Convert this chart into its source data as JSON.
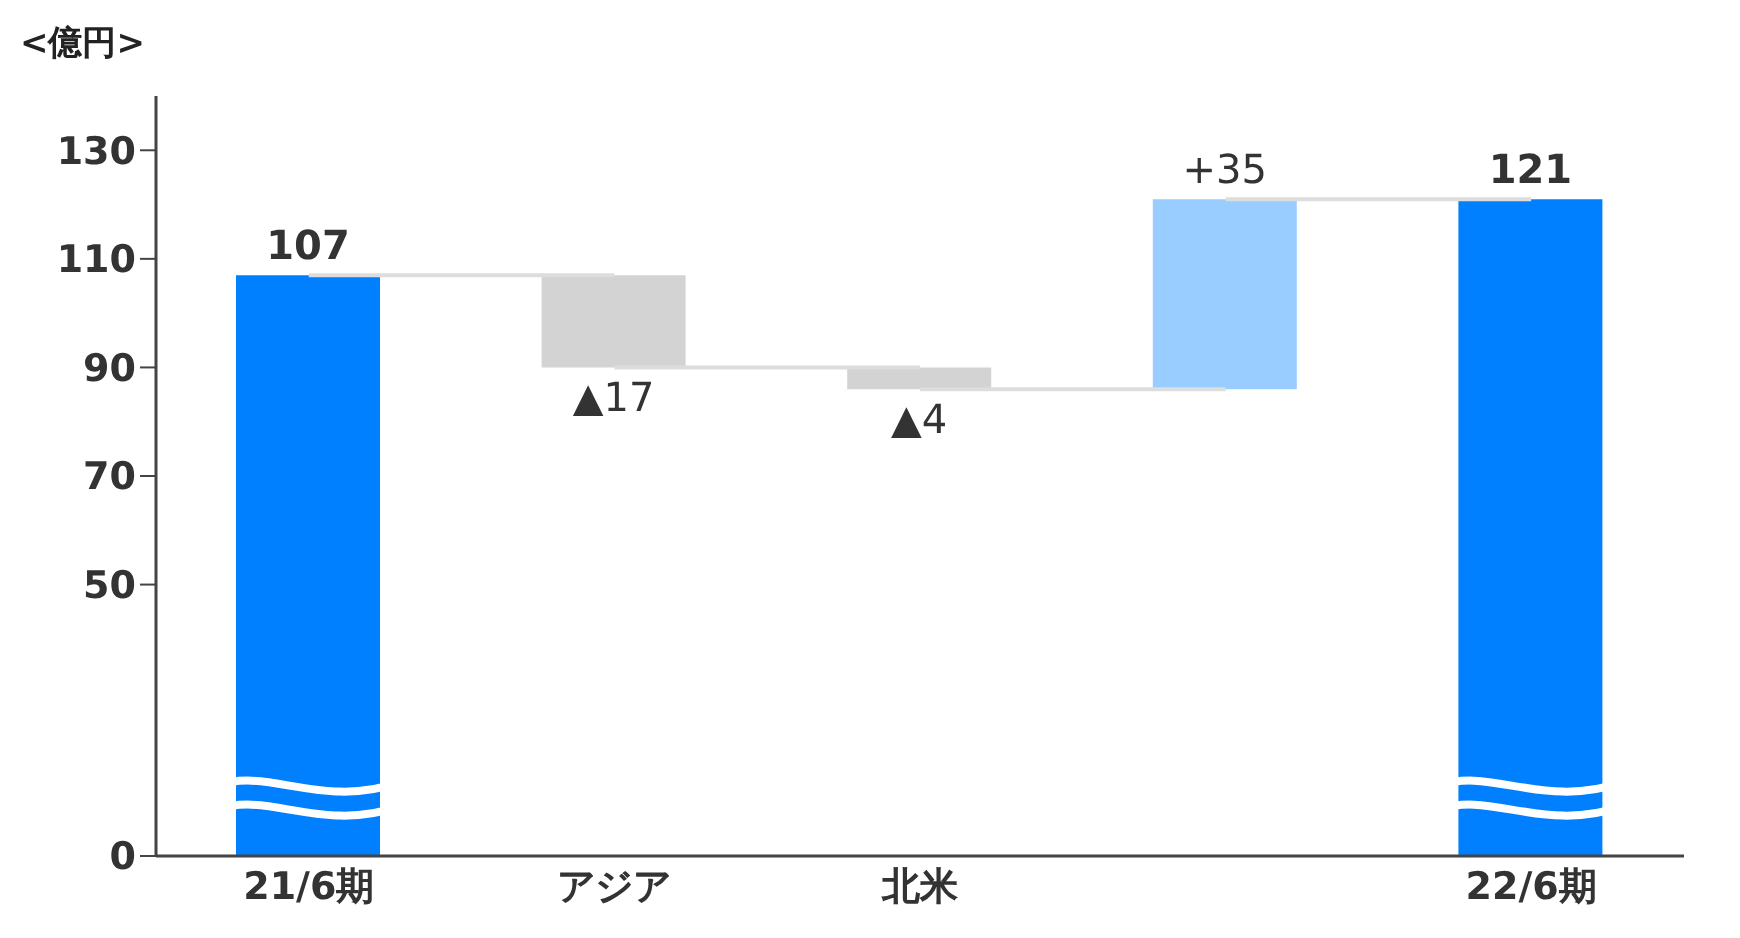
{
  "chart_data": {
    "type": "bar",
    "ylabel": "<億円>",
    "categories": [
      "21/6期",
      "アジア",
      "北米",
      null,
      "22/6期"
    ],
    "values": [
      107,
      -17,
      -4,
      35,
      121
    ],
    "base": [
      null,
      107,
      90,
      86,
      null
    ],
    "colors": [
      "#0080ff",
      "#d3d3d3",
      "#d3d3d3",
      "#99ccff",
      "#0080ff"
    ],
    "value_labels": [
      "107",
      "▲17",
      "▲4",
      "+35",
      "121"
    ],
    "ylim": [
      0,
      140
    ],
    "yticks": [
      0,
      50,
      70,
      90,
      110,
      130
    ],
    "grid": false,
    "legend": false
  }
}
